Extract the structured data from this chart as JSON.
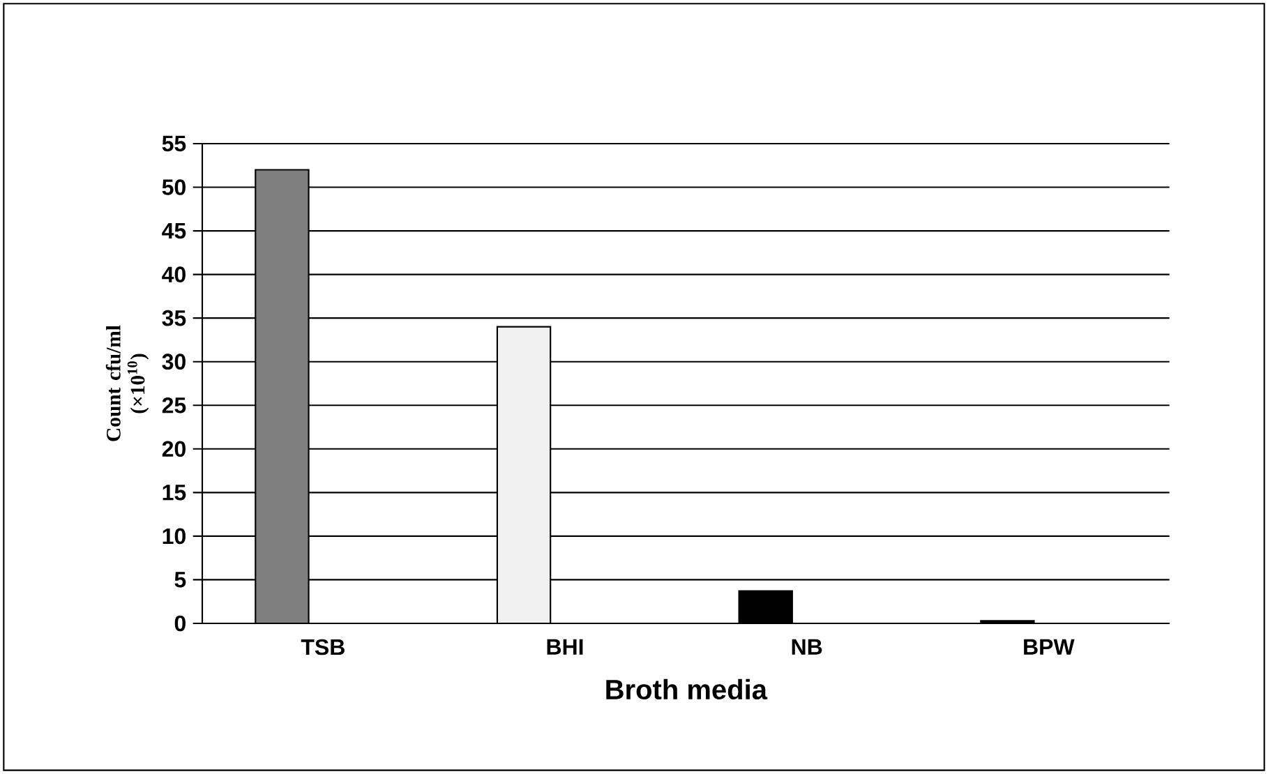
{
  "chart_data": {
    "type": "bar",
    "categories": [
      "TSB",
      "BHI",
      "NB",
      "BPW"
    ],
    "values": [
      52,
      34,
      3.7,
      0.3
    ],
    "colors": [
      "#7f7f7f",
      "#f0f0f0",
      "#000000",
      "#000000"
    ],
    "xlabel": "Broth media",
    "ylabel": "Count cfu/ml (×10$^{10}$)",
    "ylim": [
      0,
      55
    ],
    "yticks": [
      0,
      5,
      10,
      15,
      20,
      25,
      30,
      35,
      40,
      45,
      50,
      55
    ],
    "grid": "y"
  }
}
